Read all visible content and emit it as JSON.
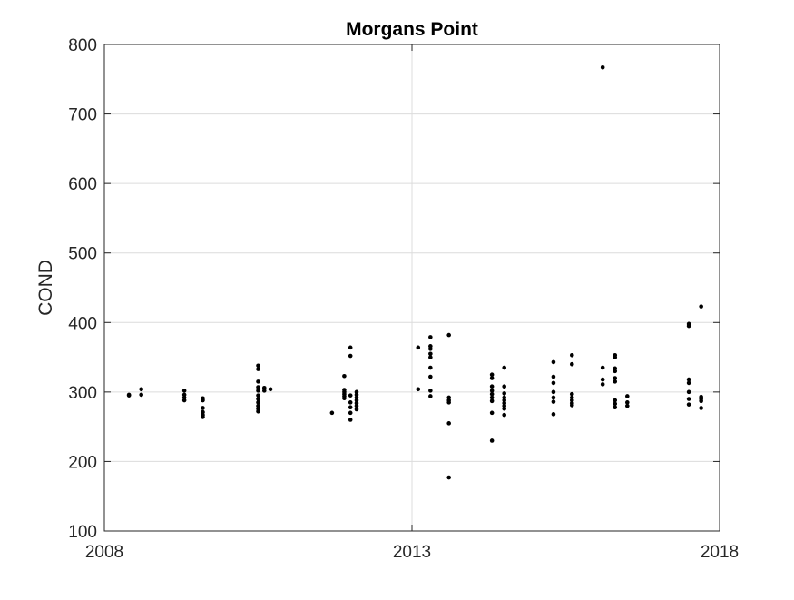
{
  "chart_data": {
    "type": "scatter",
    "title": "Morgans Point",
    "xlabel": "",
    "ylabel": "COND",
    "xlim": [
      2008,
      2018
    ],
    "ylim": [
      100,
      800
    ],
    "xticks": [
      2008,
      2013,
      2018
    ],
    "yticks": [
      100,
      200,
      300,
      400,
      500,
      600,
      700,
      800
    ],
    "grid": true,
    "legend": "none",
    "marker_color": "#000000",
    "series": [
      {
        "points": [
          [
            2008.4,
            296
          ],
          [
            2008.4,
            295
          ],
          [
            2008.6,
            304
          ],
          [
            2008.6,
            296
          ],
          [
            2009.3,
            302
          ],
          [
            2009.3,
            296
          ],
          [
            2009.3,
            292
          ],
          [
            2009.3,
            288
          ],
          [
            2009.6,
            291
          ],
          [
            2009.6,
            288
          ],
          [
            2009.6,
            277
          ],
          [
            2009.6,
            271
          ],
          [
            2009.6,
            267
          ],
          [
            2009.6,
            264
          ],
          [
            2010.5,
            338
          ],
          [
            2010.5,
            333
          ],
          [
            2010.5,
            315
          ],
          [
            2010.5,
            307
          ],
          [
            2010.5,
            302
          ],
          [
            2010.5,
            295
          ],
          [
            2010.5,
            290
          ],
          [
            2010.5,
            285
          ],
          [
            2010.5,
            280
          ],
          [
            2010.5,
            276
          ],
          [
            2010.5,
            272
          ],
          [
            2010.6,
            306
          ],
          [
            2010.6,
            302
          ],
          [
            2010.7,
            304
          ],
          [
            2011.7,
            270
          ],
          [
            2011.9,
            323
          ],
          [
            2011.9,
            303
          ],
          [
            2011.9,
            300
          ],
          [
            2011.9,
            297
          ],
          [
            2011.9,
            294
          ],
          [
            2011.9,
            291
          ],
          [
            2012.0,
            364
          ],
          [
            2012.0,
            352
          ],
          [
            2012.0,
            295
          ],
          [
            2012.0,
            285
          ],
          [
            2012.0,
            278
          ],
          [
            2012.0,
            270
          ],
          [
            2012.0,
            260
          ],
          [
            2012.1,
            300
          ],
          [
            2012.1,
            296
          ],
          [
            2012.1,
            292
          ],
          [
            2012.1,
            288
          ],
          [
            2012.1,
            284
          ],
          [
            2012.1,
            280
          ],
          [
            2012.1,
            275
          ],
          [
            2013.1,
            364
          ],
          [
            2013.1,
            304
          ],
          [
            2013.3,
            379
          ],
          [
            2013.3,
            366
          ],
          [
            2013.3,
            362
          ],
          [
            2013.3,
            355
          ],
          [
            2013.3,
            350
          ],
          [
            2013.3,
            335
          ],
          [
            2013.3,
            322
          ],
          [
            2013.3,
            302
          ],
          [
            2013.3,
            294
          ],
          [
            2013.6,
            382
          ],
          [
            2013.6,
            292
          ],
          [
            2013.6,
            288
          ],
          [
            2013.6,
            285
          ],
          [
            2013.6,
            255
          ],
          [
            2013.6,
            177
          ],
          [
            2014.3,
            325
          ],
          [
            2014.3,
            320
          ],
          [
            2014.3,
            308
          ],
          [
            2014.3,
            302
          ],
          [
            2014.3,
            297
          ],
          [
            2014.3,
            292
          ],
          [
            2014.3,
            287
          ],
          [
            2014.3,
            270
          ],
          [
            2014.3,
            230
          ],
          [
            2014.5,
            335
          ],
          [
            2014.5,
            308
          ],
          [
            2014.5,
            298
          ],
          [
            2014.5,
            292
          ],
          [
            2014.5,
            288
          ],
          [
            2014.5,
            284
          ],
          [
            2014.5,
            280
          ],
          [
            2014.5,
            276
          ],
          [
            2014.5,
            267
          ],
          [
            2015.3,
            343
          ],
          [
            2015.3,
            322
          ],
          [
            2015.3,
            313
          ],
          [
            2015.3,
            300
          ],
          [
            2015.3,
            292
          ],
          [
            2015.3,
            286
          ],
          [
            2015.3,
            268
          ],
          [
            2015.6,
            353
          ],
          [
            2015.6,
            340
          ],
          [
            2015.6,
            297
          ],
          [
            2015.6,
            292
          ],
          [
            2015.6,
            288
          ],
          [
            2015.6,
            284
          ],
          [
            2015.6,
            281
          ],
          [
            2016.1,
            767
          ],
          [
            2016.1,
            335
          ],
          [
            2016.1,
            318
          ],
          [
            2016.1,
            311
          ],
          [
            2016.3,
            353
          ],
          [
            2016.3,
            350
          ],
          [
            2016.3,
            334
          ],
          [
            2016.3,
            330
          ],
          [
            2016.3,
            320
          ],
          [
            2016.3,
            315
          ],
          [
            2016.3,
            288
          ],
          [
            2016.3,
            283
          ],
          [
            2016.3,
            278
          ],
          [
            2016.5,
            294
          ],
          [
            2016.5,
            285
          ],
          [
            2016.5,
            280
          ],
          [
            2017.5,
            398
          ],
          [
            2017.5,
            395
          ],
          [
            2017.5,
            318
          ],
          [
            2017.5,
            313
          ],
          [
            2017.5,
            300
          ],
          [
            2017.5,
            290
          ],
          [
            2017.5,
            282
          ],
          [
            2017.7,
            423
          ],
          [
            2017.7,
            293
          ],
          [
            2017.7,
            290
          ],
          [
            2017.7,
            287
          ],
          [
            2017.7,
            277
          ]
        ]
      }
    ]
  }
}
